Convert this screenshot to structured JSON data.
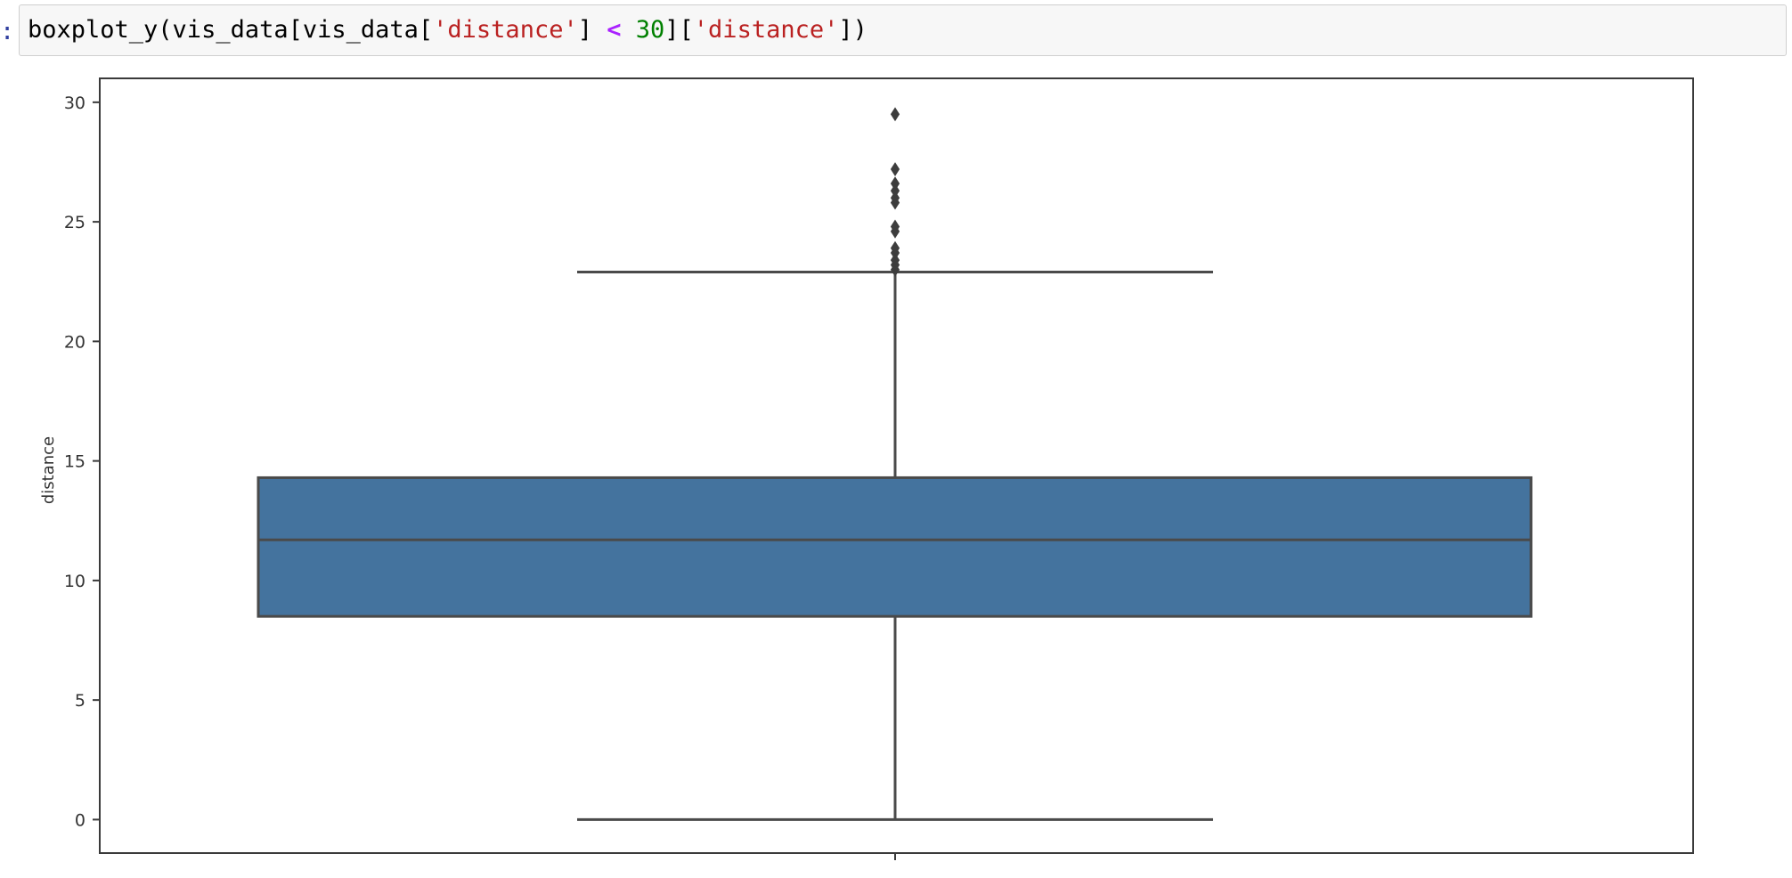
{
  "cell": {
    "prompt": ":",
    "code_tokens": [
      {
        "text": "boxplot_y(vis_data[vis_data[",
        "cls": ""
      },
      {
        "text": "'distance'",
        "cls": "tok-str"
      },
      {
        "text": "] ",
        "cls": ""
      },
      {
        "text": "<",
        "cls": "tok-op"
      },
      {
        "text": " ",
        "cls": ""
      },
      {
        "text": "30",
        "cls": "tok-num"
      },
      {
        "text": "][",
        "cls": ""
      },
      {
        "text": "'distance'",
        "cls": "tok-str"
      },
      {
        "text": "])",
        "cls": ""
      }
    ]
  },
  "colors": {
    "box_fill": "#44739e",
    "line": "#4a4a4a",
    "frame": "#3a3a3a",
    "cell_bg": "#f7f7f7",
    "cell_border": "#cfcfcf"
  },
  "chart_data": {
    "type": "boxplot",
    "orientation": "vertical",
    "ylabel": "distance",
    "xlabel": "",
    "ylim": [
      -1.4,
      31
    ],
    "yticks": [
      0,
      5,
      10,
      15,
      20,
      25,
      30
    ],
    "grid": false,
    "series": [
      {
        "whisker_low": 0.0,
        "q1": 8.5,
        "median": 11.7,
        "q3": 14.3,
        "whisker_high": 22.9,
        "outliers": [
          23.0,
          23.2,
          23.4,
          23.7,
          23.9,
          24.6,
          24.8,
          25.8,
          26.0,
          26.3,
          26.6,
          27.2,
          29.5
        ]
      }
    ]
  }
}
